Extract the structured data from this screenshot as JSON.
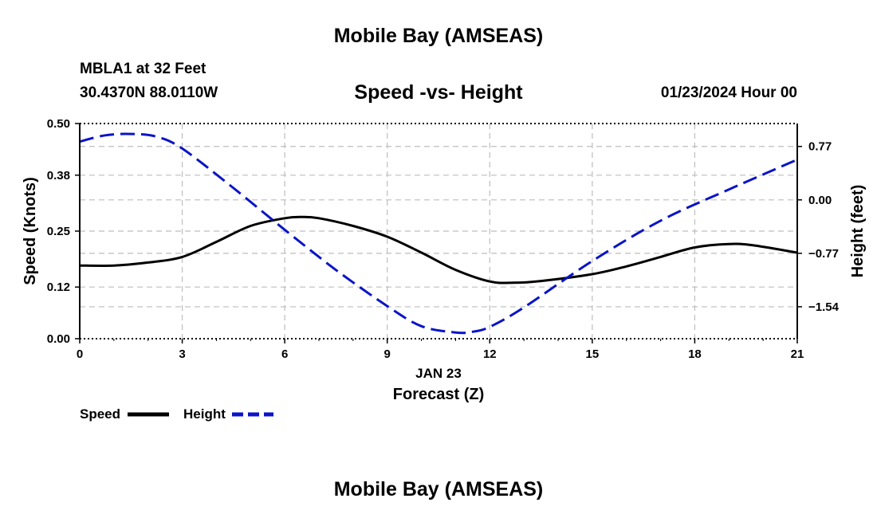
{
  "page": {
    "top_title": "Mobile Bay (AMSEAS)",
    "bottom_title": "Mobile Bay (AMSEAS)",
    "station": "MBLA1 at 32 Feet",
    "coordinates": "30.4370N  88.0110W",
    "subtitle": "Speed -vs- Height",
    "datetime": "01/23/2024 Hour 00"
  },
  "legend": {
    "speed_label": "Speed",
    "height_label": "Height"
  },
  "colors": {
    "speed": "#000000",
    "height": "#0a14c8",
    "grid": "#bdbdbd"
  },
  "chart_data": {
    "type": "line",
    "title": "Speed -vs- Height",
    "xlabel": "Forecast (Z)",
    "xlabel_date": "JAN 23",
    "ylabel_left": "Speed (Knots)",
    "ylabel_right": "Height (feet)",
    "x_ticks": [
      "0",
      "3",
      "6",
      "9",
      "12",
      "15",
      "18",
      "21"
    ],
    "xlim": [
      0,
      21
    ],
    "y_left_ticks": [
      "0.00",
      "0.12",
      "0.25",
      "0.38",
      "0.50"
    ],
    "y_left_lim": [
      0,
      0.5
    ],
    "y_right_ticks": [
      "−1.54",
      "−0.77",
      "0.00",
      "0.77"
    ],
    "y_right_tick_values": [
      -1.54,
      -0.77,
      0.0,
      0.77
    ],
    "y_right_lim": [
      -2.0,
      1.1
    ],
    "grid": true,
    "series": [
      {
        "name": "Speed",
        "axis": "left",
        "style": "solid",
        "x": [
          0,
          1,
          2,
          3,
          4,
          5,
          6,
          6.5,
          7,
          8,
          9,
          10,
          11,
          12,
          12.7,
          13.5,
          15,
          16,
          17,
          18,
          19,
          19.7,
          21
        ],
        "values": [
          0.17,
          0.17,
          0.177,
          0.19,
          0.225,
          0.262,
          0.28,
          0.283,
          0.28,
          0.262,
          0.237,
          0.2,
          0.16,
          0.133,
          0.13,
          0.134,
          0.15,
          0.168,
          0.19,
          0.212,
          0.22,
          0.217,
          0.2
        ]
      },
      {
        "name": "Height",
        "axis": "right",
        "style": "dashed",
        "x": [
          0,
          0.75,
          1.5,
          2.25,
          3,
          4.5,
          6,
          7.5,
          9,
          10,
          11,
          11.5,
          12,
          13,
          15,
          17,
          19,
          21
        ],
        "values": [
          0.84,
          0.93,
          0.95,
          0.91,
          0.74,
          0.17,
          -0.43,
          -1.01,
          -1.53,
          -1.82,
          -1.91,
          -1.9,
          -1.83,
          -1.55,
          -0.88,
          -0.3,
          0.15,
          0.58
        ]
      }
    ]
  }
}
